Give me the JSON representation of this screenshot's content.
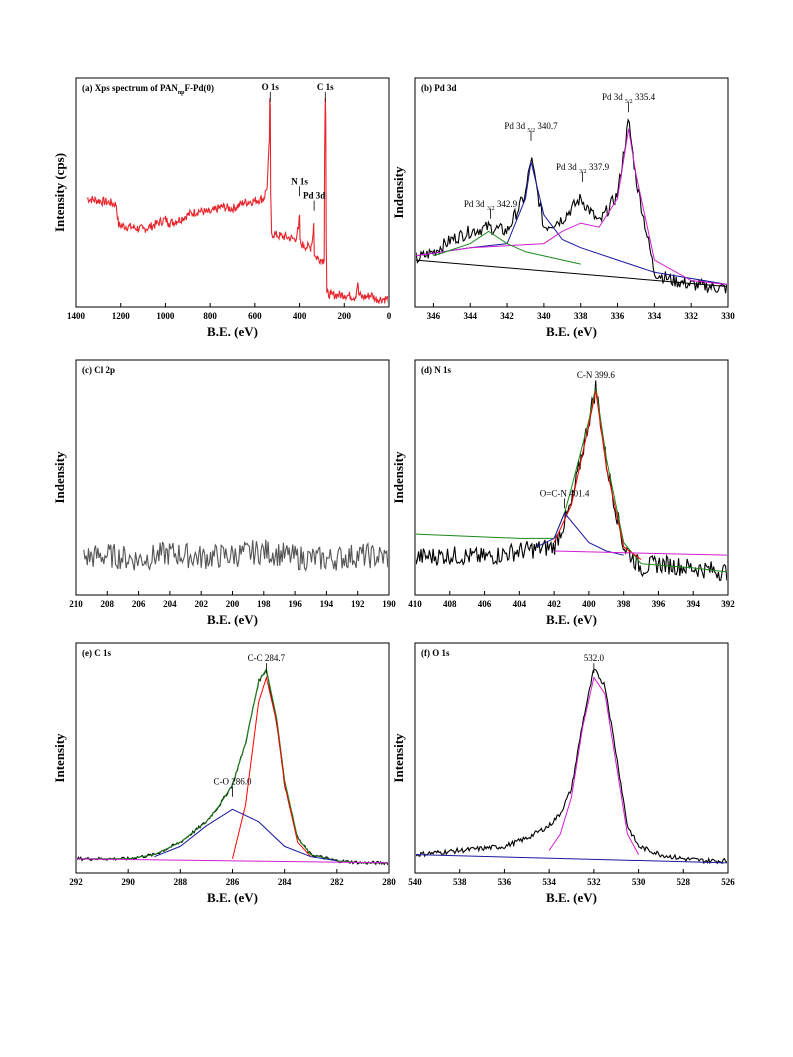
{
  "chart_data": [
    {
      "id": "a",
      "type": "line",
      "title": "(a) Xps spectrum of PAN",
      "title_sub": "np",
      "title_suffix": "F-Pd(0)",
      "xlabel": "B.E. (eV)",
      "ylabel": "Intensity (cps)",
      "xlim": [
        1400,
        0
      ],
      "x_reversed": true,
      "xticks": [
        1400,
        1200,
        1000,
        800,
        600,
        400,
        200,
        0
      ],
      "ylim": [
        0,
        100
      ],
      "series": [
        {
          "color": "#e8252c",
          "x": [
            1350,
            1300,
            1250,
            1220,
            1210,
            1150,
            1100,
            1050,
            1000,
            985,
            950,
            900,
            850,
            800,
            750,
            700,
            650,
            600,
            560,
            545,
            535,
            533,
            531,
            529,
            525,
            500,
            450,
            420,
            405,
            400,
            398,
            395,
            380,
            350,
            340,
            337,
            334,
            320,
            300,
            290,
            288,
            285,
            283,
            281,
            278,
            260,
            200,
            150,
            140,
            135,
            120,
            100,
            80,
            60,
            40,
            20,
            0
          ],
          "y": [
            50,
            49,
            48,
            47,
            37,
            36,
            35,
            37,
            40,
            38,
            39,
            42,
            44,
            43,
            46,
            45,
            48,
            49,
            50,
            56,
            78,
            99,
            95,
            52,
            33,
            32,
            31,
            30,
            35,
            42,
            30,
            28,
            27,
            26,
            32,
            38,
            22,
            21,
            20,
            20,
            70,
            99,
            90,
            30,
            4,
            3,
            3,
            2,
            9,
            3,
            2,
            2,
            3,
            1,
            1,
            1,
            1
          ]
        }
      ],
      "annotations": [
        {
          "text": "O 1s",
          "x": 531,
          "y": 101
        },
        {
          "text": "C 1s",
          "x": 285,
          "y": 101
        },
        {
          "text": "N 1s",
          "x": 400,
          "y": 55
        },
        {
          "text": "Pd 3d",
          "x": 335,
          "y": 48
        }
      ]
    },
    {
      "id": "b",
      "type": "line",
      "title": "(b) Pd 3d",
      "xlabel": "B.E. (eV)",
      "ylabel": "Indensity",
      "xlim": [
        347,
        330
      ],
      "x_reversed": true,
      "xticks": [
        346,
        344,
        342,
        340,
        338,
        336,
        334,
        332,
        330
      ],
      "ylim": [
        0,
        100
      ],
      "series": [
        {
          "color": "#000000",
          "x": [
            347,
            346,
            345,
            344,
            343,
            342,
            341,
            340.7,
            340,
            339,
            338,
            337,
            336,
            335.4,
            335,
            334,
            333,
            332,
            331,
            330
          ],
          "y": [
            20,
            24,
            30,
            34,
            36,
            34,
            52,
            70,
            36,
            40,
            50,
            38,
            52,
            88,
            60,
            14,
            10,
            8,
            7,
            6
          ]
        },
        {
          "color": "#1a1aa0",
          "x": [
            347,
            344,
            342,
            341,
            340.7,
            340,
            339,
            338,
            336,
            334,
            330
          ],
          "y": [
            22,
            26,
            28,
            50,
            68,
            42,
            30,
            26,
            20,
            14,
            8
          ]
        },
        {
          "color": "#d21ed2",
          "x": [
            347,
            344,
            342,
            340,
            339,
            338,
            337,
            336,
            335.4,
            335,
            334,
            332,
            330
          ],
          "y": [
            22,
            26,
            27,
            28,
            34,
            38,
            36,
            50,
            84,
            62,
            20,
            10,
            8
          ]
        },
        {
          "color": "#1a8a1a",
          "x": [
            346,
            344,
            343,
            342,
            341,
            340,
            338
          ],
          "y": [
            22,
            28,
            34,
            28,
            24,
            22,
            18
          ]
        },
        {
          "color": "#000000",
          "x": [
            347,
            330
          ],
          "y": [
            20,
            7
          ]
        }
      ],
      "annotations": [
        {
          "text": "Pd 3d",
          "sub": "5/2",
          "value": "335.4",
          "x": 335.4,
          "y": 96
        },
        {
          "text": "Pd 3d",
          "sub": "5/2",
          "value": "340.7",
          "x": 340.7,
          "y": 82
        },
        {
          "text": "Pd 3d",
          "sub": "3/2",
          "value": "337.9",
          "x": 337.9,
          "y": 62
        },
        {
          "text": "Pd 3d",
          "sub": "3/2",
          "value": "342.9",
          "x": 342.9,
          "y": 44
        }
      ]
    },
    {
      "id": "c",
      "type": "line",
      "title": "(c) Cl 2p",
      "xlabel": "B.E. (eV)",
      "ylabel": "Indensity",
      "xlim": [
        210,
        190
      ],
      "x_reversed": true,
      "xticks": [
        210,
        208,
        206,
        204,
        202,
        200,
        198,
        196,
        194,
        192,
        190
      ],
      "ylim": [
        0,
        100
      ],
      "series": [
        {
          "color": "#555555",
          "x": [
            209.5,
            208,
            206,
            204,
            202,
            200,
            198,
            196,
            194,
            192,
            190
          ],
          "y": [
            15,
            16,
            14,
            17,
            15,
            16,
            18,
            15,
            14,
            16,
            15
          ]
        }
      ],
      "annotations": []
    },
    {
      "id": "d",
      "type": "line",
      "title": "(d) N 1s",
      "xlabel": "B.E. (eV)",
      "ylabel": "Indensity",
      "xlim": [
        410,
        392
      ],
      "x_reversed": true,
      "xticks": [
        410,
        408,
        406,
        404,
        402,
        400,
        398,
        396,
        394,
        392
      ],
      "ylim": [
        0,
        100
      ],
      "series": [
        {
          "color": "#000000",
          "x": [
            410,
            408,
            406,
            404,
            402,
            401.4,
            401,
            400,
            399.6,
            399,
            398,
            397,
            396,
            394,
            392
          ],
          "y": [
            15,
            16,
            15,
            18,
            20,
            32,
            40,
            80,
            96,
            60,
            20,
            10,
            12,
            10,
            8
          ]
        },
        {
          "color": "#1a8a1a",
          "x": [
            410,
            404,
            402,
            401.4,
            401,
            400,
            399.6,
            399,
            398,
            397,
            394,
            392
          ],
          "y": [
            26,
            24,
            24,
            36,
            48,
            80,
            96,
            62,
            22,
            12,
            10,
            8
          ]
        },
        {
          "color": "#ff0000",
          "x": [
            402,
            401,
            400,
            399.6,
            399,
            398,
            397
          ],
          "y": [
            22,
            40,
            78,
            94,
            58,
            20,
            14
          ]
        },
        {
          "color": "#1a1aa0",
          "x": [
            403,
            402,
            401.4,
            400,
            399,
            398
          ],
          "y": [
            20,
            24,
            36,
            22,
            18,
            16
          ]
        },
        {
          "color": "#d21ed2",
          "x": [
            402,
            392
          ],
          "y": [
            18,
            16
          ]
        }
      ],
      "annotations": [
        {
          "text": "C-N 399.6",
          "x": 399.6,
          "y": 98
        },
        {
          "text": "O=C-N 401.4",
          "x": 401.4,
          "y": 42
        }
      ]
    },
    {
      "id": "e",
      "type": "line",
      "title": "(e) C 1s",
      "xlabel": "B.E. (eV)",
      "ylabel": "Intensity",
      "xlim": [
        292,
        280
      ],
      "x_reversed": true,
      "xticks": [
        292,
        290,
        288,
        286,
        284,
        282,
        280
      ],
      "ylim": [
        0,
        100
      ],
      "series": [
        {
          "color": "#000000",
          "x": [
            292,
            290,
            289,
            288,
            287,
            286.5,
            286,
            285.5,
            285,
            284.7,
            284.3,
            284,
            283.5,
            283,
            282,
            281,
            280
          ],
          "y": [
            4,
            4,
            6,
            12,
            22,
            30,
            40,
            60,
            90,
            96,
            70,
            40,
            14,
            6,
            3,
            2,
            2
          ]
        },
        {
          "color": "#1a8a1a",
          "x": [
            292,
            290,
            289,
            288,
            287,
            286.5,
            286,
            285.5,
            285,
            284.7,
            284.3,
            284,
            283.5,
            283,
            282,
            281,
            280
          ],
          "y": [
            4,
            4,
            6,
            12,
            22,
            30,
            40,
            60,
            90,
            96,
            72,
            42,
            14,
            6,
            3,
            2,
            2
          ]
        },
        {
          "color": "#ff0000",
          "x": [
            286,
            285.5,
            285,
            284.7,
            284.3,
            284,
            283.5,
            283
          ],
          "y": [
            4,
            30,
            80,
            92,
            70,
            40,
            12,
            5
          ]
        },
        {
          "color": "#1a1aa0",
          "x": [
            289,
            288,
            287,
            286,
            285,
            284,
            283,
            282
          ],
          "y": [
            5,
            10,
            20,
            28,
            22,
            10,
            5,
            3
          ]
        },
        {
          "color": "#d21ed2",
          "x": [
            292,
            280
          ],
          "y": [
            4,
            2
          ]
        }
      ],
      "annotations": [
        {
          "text": "C-C 284.7",
          "x": 284.7,
          "y": 98
        },
        {
          "text": "C-O 286.0",
          "x": 286.0,
          "y": 38
        }
      ]
    },
    {
      "id": "f",
      "type": "line",
      "title": "(f) O 1s",
      "xlabel": "B.E. (eV)",
      "ylabel": "Intensity",
      "xlim": [
        540,
        526
      ],
      "x_reversed": true,
      "xticks": [
        540,
        538,
        536,
        534,
        532,
        530,
        528,
        526
      ],
      "ylim": [
        0,
        100
      ],
      "series": [
        {
          "color": "#000000",
          "x": [
            540,
            538,
            536,
            535,
            534,
            533.5,
            533,
            532.5,
            532,
            531.5,
            531,
            530.5,
            530,
            529,
            528,
            527,
            526
          ],
          "y": [
            6,
            8,
            10,
            14,
            20,
            26,
            38,
            70,
            96,
            88,
            55,
            20,
            10,
            6,
            4,
            3,
            3
          ]
        },
        {
          "color": "#d21ed2",
          "x": [
            534,
            533.5,
            533,
            532.5,
            532,
            531.5,
            531,
            530.5,
            530
          ],
          "y": [
            8,
            16,
            34,
            68,
            92,
            84,
            50,
            16,
            6
          ]
        },
        {
          "color": "#1a1aa0",
          "x": [
            540,
            526
          ],
          "y": [
            6,
            2
          ]
        }
      ],
      "annotations": [
        {
          "text": "532.0",
          "x": 532.0,
          "y": 98
        }
      ]
    }
  ]
}
